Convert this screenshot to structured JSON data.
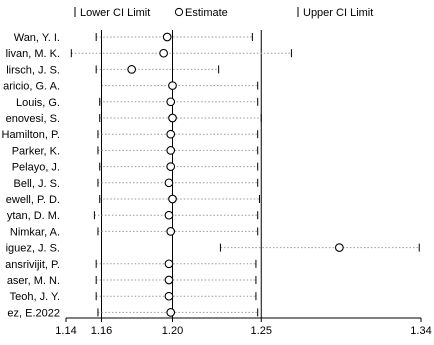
{
  "chart_data": {
    "type": "forest",
    "title": "",
    "legend": {
      "position": "top",
      "entries": [
        {
          "marker": "|",
          "label": "Lower CI Limit"
        },
        {
          "marker": "○",
          "label": "Estimate"
        },
        {
          "marker": "|",
          "label": "Upper CI Limit"
        }
      ]
    },
    "x_axis": {
      "range": [
        1.14,
        1.34
      ],
      "ticks": [
        "1.14",
        "1.16",
        "1.20",
        "1.25",
        "1.34"
      ],
      "tick_values": [
        1.14,
        1.16,
        1.2,
        1.25,
        1.34
      ]
    },
    "reference_lines": [
      1.16,
      1.2,
      1.25
    ],
    "studies": [
      {
        "label": "Wan, Y. I.",
        "lower": 1.157,
        "estimate": 1.197,
        "upper": 1.245
      },
      {
        "label": "livan, M. K.",
        "lower": 1.143,
        "estimate": 1.195,
        "upper": 1.267
      },
      {
        "label": "lirsch, J. S.",
        "lower": 1.157,
        "estimate": 1.177,
        "upper": 1.226
      },
      {
        "label": "aricio, G. A.",
        "lower": 1.16,
        "estimate": 1.2,
        "upper": 1.248
      },
      {
        "label": "Louis, G.",
        "lower": 1.159,
        "estimate": 1.199,
        "upper": 1.248
      },
      {
        "label": "enovesi, S.",
        "lower": 1.159,
        "estimate": 1.2,
        "upper": 1.25
      },
      {
        "label": "Hamilton, P.",
        "lower": 1.158,
        "estimate": 1.199,
        "upper": 1.248
      },
      {
        "label": "Parker, K.",
        "lower": 1.158,
        "estimate": 1.199,
        "upper": 1.248
      },
      {
        "label": "Pelayo, J.",
        "lower": 1.159,
        "estimate": 1.199,
        "upper": 1.248
      },
      {
        "label": "Bell, J. S.",
        "lower": 1.158,
        "estimate": 1.198,
        "upper": 1.248
      },
      {
        "label": "ewell, P. D.",
        "lower": 1.159,
        "estimate": 1.2,
        "upper": 1.249
      },
      {
        "label": "ytan, D. M.",
        "lower": 1.156,
        "estimate": 1.198,
        "upper": 1.248
      },
      {
        "label": "Nimkar, A.",
        "lower": 1.158,
        "estimate": 1.199,
        "upper": 1.248
      },
      {
        "label": "iguez, J. S.",
        "lower": 1.227,
        "estimate": 1.294,
        "upper": 1.339
      },
      {
        "label": "ansrivijit, P.",
        "lower": 1.157,
        "estimate": 1.198,
        "upper": 1.247
      },
      {
        "label": "aser, M. N.",
        "lower": 1.157,
        "estimate": 1.198,
        "upper": 1.247
      },
      {
        "label": "Teoh, J. Y.",
        "lower": 1.157,
        "estimate": 1.198,
        "upper": 1.247
      },
      {
        "label": "ez, E.2022",
        "lower": 1.158,
        "estimate": 1.199,
        "upper": 1.248
      }
    ]
  }
}
